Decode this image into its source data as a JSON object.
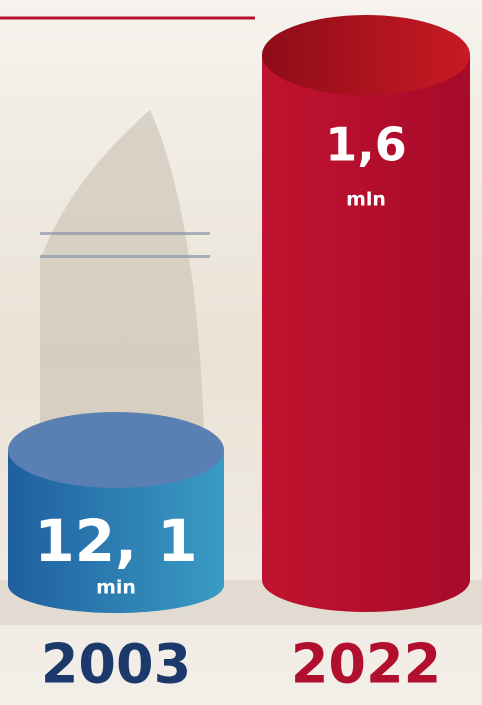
{
  "items": [
    {
      "value_label": "12, 1",
      "unit": "min",
      "year": "2003"
    },
    {
      "value_label": "1,6",
      "unit": "mln",
      "year": "2022"
    }
  ]
}
